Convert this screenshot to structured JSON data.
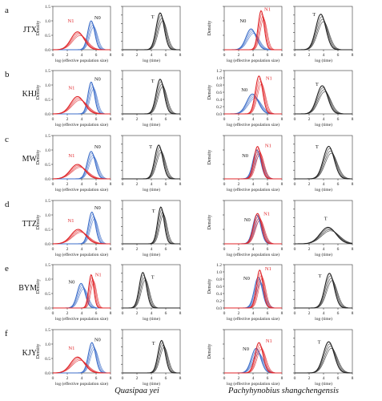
{
  "figure": {
    "species_left": "Quasipaa yei",
    "species_right": "Pachyhynobius shangchengensis"
  },
  "axis_labels": {
    "ylabel": "Density",
    "xlabel_size": "log (effective population size)",
    "xlabel_time": "log (time)"
  },
  "rows": [
    {
      "letter": "a",
      "site": "JTX"
    },
    {
      "letter": "b",
      "site": "KHJ"
    },
    {
      "letter": "c",
      "site": "MW"
    },
    {
      "letter": "d",
      "site": "TTZ"
    },
    {
      "letter": "e",
      "site": "BYM"
    },
    {
      "letter": "f",
      "site": "KJY"
    }
  ],
  "colors": {
    "N0": "#3d6ec9",
    "N1": "#e0262a",
    "T": "#222222",
    "N1_label": "#e0262a"
  },
  "chart_data": {
    "type": "line",
    "x_ticks": [
      0,
      2,
      4,
      6,
      8
    ],
    "xlim": [
      0,
      8
    ],
    "y_ticks_ne": [
      0,
      0.5,
      1.0,
      1.5
    ],
    "y_ticks_ne_high": [
      0,
      0.2,
      0.4,
      0.6,
      0.8,
      1.0,
      1.2
    ],
    "panels": [
      {
        "row": "a",
        "species": "Quasipaa yei",
        "kind": "size",
        "ylim": [
          0,
          1.5
        ],
        "ylabels": [
          "0.0",
          "0.5",
          "1.0",
          "1.5"
        ],
        "series": [
          {
            "name": "N0",
            "mode": 5.5,
            "peak": 1.0,
            "sd": 0.48,
            "curves": 4
          },
          {
            "name": "N1",
            "mode": 3.6,
            "peak": 0.62,
            "sd": 0.9,
            "curves": 4
          }
        ],
        "labels": [
          {
            "text": "N0",
            "x": 6.2,
            "y": 1.05
          },
          {
            "text": "N1",
            "x": 2.5,
            "y": 0.95
          }
        ]
      },
      {
        "row": "a",
        "species": "Quasipaa yei",
        "kind": "time",
        "ylim": [
          0,
          1.0
        ],
        "ylabels": [
          "",
          "",
          "",
          ""
        ],
        "series": [
          {
            "name": "T",
            "mode": 5.4,
            "peak": 0.85,
            "sd": 0.55,
            "curves": 4
          }
        ],
        "labels": [
          {
            "text": "T",
            "x": 4.2,
            "y": 0.72
          }
        ]
      },
      {
        "row": "a",
        "species": "Pachyhynobius shangchengensis",
        "kind": "size",
        "ylim": [
          0,
          1.5
        ],
        "ylabels": [
          "",
          "",
          "",
          ""
        ],
        "series": [
          {
            "name": "N0",
            "mode": 3.9,
            "peak": 0.72,
            "sd": 0.7,
            "curves": 4
          },
          {
            "name": "N1",
            "mode": 5.3,
            "peak": 1.35,
            "sd": 0.42,
            "curves": 4
          }
        ],
        "labels": [
          {
            "text": "N0",
            "x": 2.6,
            "y": 0.95
          },
          {
            "text": "N1",
            "x": 6.0,
            "y": 1.35
          }
        ]
      },
      {
        "row": "a",
        "species": "Pachyhynobius shangchengensis",
        "kind": "time",
        "ylim": [
          0,
          1.0
        ],
        "ylabels": [
          "",
          "",
          "",
          ""
        ],
        "series": [
          {
            "name": "T",
            "mode": 3.8,
            "peak": 0.82,
            "sd": 0.7,
            "curves": 4
          }
        ],
        "labels": [
          {
            "text": "T",
            "x": 2.7,
            "y": 0.78
          }
        ]
      },
      {
        "row": "b",
        "species": "Quasipaa yei",
        "kind": "size",
        "ylim": [
          0,
          1.5
        ],
        "ylabels": [
          "0.0",
          "0.5",
          "1.0",
          "1.5"
        ],
        "series": [
          {
            "name": "N0",
            "mode": 5.5,
            "peak": 1.1,
            "sd": 0.45,
            "curves": 4
          },
          {
            "name": "N1",
            "mode": 3.6,
            "peak": 0.6,
            "sd": 0.95,
            "curves": 4
          }
        ],
        "labels": [
          {
            "text": "N0",
            "x": 6.2,
            "y": 1.15
          },
          {
            "text": "N1",
            "x": 2.6,
            "y": 0.85
          }
        ]
      },
      {
        "row": "b",
        "species": "Quasipaa yei",
        "kind": "time",
        "ylim": [
          0,
          1.0
        ],
        "ylabels": [
          "",
          "",
          "",
          ""
        ],
        "series": [
          {
            "name": "T",
            "mode": 5.4,
            "peak": 0.8,
            "sd": 0.55,
            "curves": 4
          }
        ],
        "labels": [
          {
            "text": "T",
            "x": 4.2,
            "y": 0.72
          }
        ]
      },
      {
        "row": "b",
        "species": "Pachyhynobius shangchengensis",
        "kind": "size",
        "ylim": [
          0,
          1.2
        ],
        "ylabels": [
          "0.0",
          "0.2",
          "0.4",
          "0.6",
          "0.8",
          "1.0",
          "1.2"
        ],
        "series": [
          {
            "name": "N0",
            "mode": 4.1,
            "peak": 0.55,
            "sd": 0.8,
            "curves": 4
          },
          {
            "name": "N1",
            "mode": 5.0,
            "peak": 1.05,
            "sd": 0.5,
            "curves": 4
          }
        ],
        "labels": [
          {
            "text": "N0",
            "x": 2.8,
            "y": 0.62
          },
          {
            "text": "N1",
            "x": 6.2,
            "y": 0.95
          }
        ]
      },
      {
        "row": "b",
        "species": "Pachyhynobius shangchengensis",
        "kind": "time",
        "ylim": [
          0,
          1.0
        ],
        "ylabels": [
          "",
          "",
          "",
          ""
        ],
        "series": [
          {
            "name": "T",
            "mode": 4.0,
            "peak": 0.65,
            "sd": 0.75,
            "curves": 4
          }
        ],
        "labels": [
          {
            "text": "T",
            "x": 3.1,
            "y": 0.65
          }
        ]
      },
      {
        "row": "c",
        "species": "Quasipaa yei",
        "kind": "size",
        "ylim": [
          0,
          1.5
        ],
        "ylabels": [
          "0.0",
          "0.5",
          "1.0",
          "1.5"
        ],
        "series": [
          {
            "name": "N0",
            "mode": 5.5,
            "peak": 0.95,
            "sd": 0.55,
            "curves": 4
          },
          {
            "name": "N1",
            "mode": 3.6,
            "peak": 0.5,
            "sd": 1.0,
            "curves": 4
          }
        ],
        "labels": [
          {
            "text": "N0",
            "x": 6.2,
            "y": 1.05
          },
          {
            "text": "N1",
            "x": 2.6,
            "y": 0.75
          }
        ]
      },
      {
        "row": "c",
        "species": "Quasipaa yei",
        "kind": "time",
        "ylim": [
          0,
          1.0
        ],
        "ylabels": [
          "",
          "",
          "",
          ""
        ],
        "series": [
          {
            "name": "T",
            "mode": 5.2,
            "peak": 0.78,
            "sd": 0.55,
            "curves": 4
          }
        ],
        "labels": [
          {
            "text": "T",
            "x": 3.9,
            "y": 0.7
          }
        ]
      },
      {
        "row": "c",
        "species": "Pachyhynobius shangchengensis",
        "kind": "size",
        "ylim": [
          0,
          1.5
        ],
        "ylabels": [
          "",
          "",
          "",
          ""
        ],
        "series": [
          {
            "name": "N0",
            "mode": 4.7,
            "peak": 1.0,
            "sd": 0.55,
            "curves": 4
          },
          {
            "name": "N1",
            "mode": 4.8,
            "peak": 1.12,
            "sd": 0.5,
            "curves": 4
          }
        ],
        "labels": [
          {
            "text": "N0",
            "x": 2.9,
            "y": 0.75
          },
          {
            "text": "N1",
            "x": 6.1,
            "y": 1.1
          }
        ]
      },
      {
        "row": "c",
        "species": "Pachyhynobius shangchengensis",
        "kind": "time",
        "ylim": [
          0,
          1.0
        ],
        "ylabels": [
          "",
          "",
          "",
          ""
        ],
        "series": [
          {
            "name": "T",
            "mode": 4.9,
            "peak": 0.75,
            "sd": 0.75,
            "curves": 4
          }
        ],
        "labels": [
          {
            "text": "T",
            "x": 3.1,
            "y": 0.7
          }
        ]
      },
      {
        "row": "d",
        "species": "Quasipaa yei",
        "kind": "size",
        "ylim": [
          0,
          1.5
        ],
        "ylabels": [
          "0.0",
          "0.5",
          "1.0",
          "1.5"
        ],
        "series": [
          {
            "name": "N0",
            "mode": 5.6,
            "peak": 1.1,
            "sd": 0.48,
            "curves": 4
          },
          {
            "name": "N1",
            "mode": 3.7,
            "peak": 0.5,
            "sd": 1.0,
            "curves": 4
          }
        ],
        "labels": [
          {
            "text": "N0",
            "x": 6.2,
            "y": 1.2
          },
          {
            "text": "N1",
            "x": 2.5,
            "y": 0.75
          }
        ]
      },
      {
        "row": "d",
        "species": "Quasipaa yei",
        "kind": "time",
        "ylim": [
          0,
          1.0
        ],
        "ylabels": [
          "",
          "",
          "",
          ""
        ],
        "series": [
          {
            "name": "T",
            "mode": 5.5,
            "peak": 0.85,
            "sd": 0.45,
            "curves": 4
          }
        ],
        "labels": [
          {
            "text": "T",
            "x": 4.3,
            "y": 0.72
          }
        ]
      },
      {
        "row": "d",
        "species": "Pachyhynobius shangchengensis",
        "kind": "size",
        "ylim": [
          0,
          1.5
        ],
        "ylabels": [
          "",
          "",
          "",
          ""
        ],
        "series": [
          {
            "name": "N0",
            "mode": 4.7,
            "peak": 1.0,
            "sd": 0.55,
            "curves": 4
          },
          {
            "name": "N1",
            "mode": 4.8,
            "peak": 1.05,
            "sd": 0.55,
            "curves": 4
          }
        ],
        "labels": [
          {
            "text": "N0",
            "x": 3.2,
            "y": 0.78
          },
          {
            "text": "N1",
            "x": 5.9,
            "y": 0.98
          }
        ]
      },
      {
        "row": "d",
        "species": "Pachyhynobius shangchengensis",
        "kind": "time",
        "ylim": [
          0,
          1.0
        ],
        "ylabels": [
          "",
          "",
          "",
          ""
        ],
        "series": [
          {
            "name": "T",
            "mode": 4.8,
            "peak": 0.38,
            "sd": 1.1,
            "curves": 4
          }
        ],
        "labels": [
          {
            "text": "T",
            "x": 4.3,
            "y": 0.55
          }
        ]
      },
      {
        "row": "e",
        "species": "Quasipaa yei",
        "kind": "size",
        "ylim": [
          0,
          1.5
        ],
        "ylabels": [
          "0.0",
          "0.5",
          "1.0",
          "1.5"
        ],
        "series": [
          {
            "name": "N0",
            "mode": 4.1,
            "peak": 0.85,
            "sd": 0.55,
            "curves": 4
          },
          {
            "name": "N1",
            "mode": 5.5,
            "peak": 1.15,
            "sd": 0.35,
            "curves": 4
          }
        ],
        "labels": [
          {
            "text": "N0",
            "x": 2.6,
            "y": 0.85
          },
          {
            "text": "N1",
            "x": 6.3,
            "y": 1.1
          }
        ]
      },
      {
        "row": "e",
        "species": "Quasipaa yei",
        "kind": "time",
        "ylim": [
          0,
          1.0
        ],
        "ylabels": [
          "",
          "",
          "",
          ""
        ],
        "series": [
          {
            "name": "T",
            "mode": 3.0,
            "peak": 0.82,
            "sd": 0.5,
            "curves": 4
          }
        ],
        "labels": [
          {
            "text": "T",
            "x": 4.2,
            "y": 0.68
          }
        ]
      },
      {
        "row": "e",
        "species": "Pachyhynobius shangchengensis",
        "kind": "size",
        "ylim": [
          0,
          1.2
        ],
        "ylabels": [
          "0.0",
          "0.2",
          "0.4",
          "0.6",
          "0.8",
          "1.0",
          "1.2"
        ],
        "series": [
          {
            "name": "N0",
            "mode": 4.9,
            "peak": 0.85,
            "sd": 0.55,
            "curves": 4
          },
          {
            "name": "N1",
            "mode": 5.1,
            "peak": 1.05,
            "sd": 0.45,
            "curves": 4
          }
        ],
        "labels": [
          {
            "text": "N0",
            "x": 3.1,
            "y": 0.78
          },
          {
            "text": "N1",
            "x": 6.1,
            "y": 1.05
          }
        ]
      },
      {
        "row": "e",
        "species": "Pachyhynobius shangchengensis",
        "kind": "time",
        "ylim": [
          0,
          1.0
        ],
        "ylabels": [
          "",
          "",
          "",
          ""
        ],
        "series": [
          {
            "name": "T",
            "mode": 5.0,
            "peak": 0.8,
            "sd": 0.65,
            "curves": 4
          }
        ],
        "labels": [
          {
            "text": "T",
            "x": 3.5,
            "y": 0.7
          }
        ]
      },
      {
        "row": "f",
        "species": "Quasipaa yei",
        "kind": "size",
        "ylim": [
          0,
          1.5
        ],
        "ylabels": [
          "0.0",
          "0.5",
          "1.0",
          "1.5"
        ],
        "series": [
          {
            "name": "N0",
            "mode": 5.6,
            "peak": 1.05,
            "sd": 0.5,
            "curves": 4
          },
          {
            "name": "N1",
            "mode": 3.6,
            "peak": 0.55,
            "sd": 0.95,
            "curves": 4
          }
        ],
        "labels": [
          {
            "text": "N0",
            "x": 6.2,
            "y": 1.1
          },
          {
            "text": "N1",
            "x": 2.6,
            "y": 0.8
          }
        ]
      },
      {
        "row": "f",
        "species": "Quasipaa yei",
        "kind": "time",
        "ylim": [
          0,
          1.0
        ],
        "ylabels": [
          "",
          "",
          "",
          ""
        ],
        "series": [
          {
            "name": "T",
            "mode": 5.6,
            "peak": 0.75,
            "sd": 0.5,
            "curves": 4
          }
        ],
        "labels": [
          {
            "text": "T",
            "x": 4.3,
            "y": 0.65
          }
        ]
      },
      {
        "row": "f",
        "species": "Pachyhynobius shangchengensis",
        "kind": "size",
        "ylim": [
          0,
          1.5
        ],
        "ylabels": [
          "",
          "",
          "",
          ""
        ],
        "series": [
          {
            "name": "N0",
            "mode": 4.6,
            "peak": 0.85,
            "sd": 0.65,
            "curves": 4
          },
          {
            "name": "N1",
            "mode": 5.0,
            "peak": 1.05,
            "sd": 0.55,
            "curves": 4
          }
        ],
        "labels": [
          {
            "text": "N0",
            "x": 3.0,
            "y": 0.78
          },
          {
            "text": "N1",
            "x": 6.2,
            "y": 1.05
          }
        ]
      },
      {
        "row": "f",
        "species": "Pachyhynobius shangchengensis",
        "kind": "time",
        "ylim": [
          0,
          1.0
        ],
        "ylabels": [
          "",
          "",
          "",
          ""
        ],
        "series": [
          {
            "name": "T",
            "mode": 4.9,
            "peak": 0.72,
            "sd": 0.75,
            "curves": 4
          }
        ],
        "labels": [
          {
            "text": "T",
            "x": 3.4,
            "y": 0.68
          }
        ]
      }
    ]
  }
}
